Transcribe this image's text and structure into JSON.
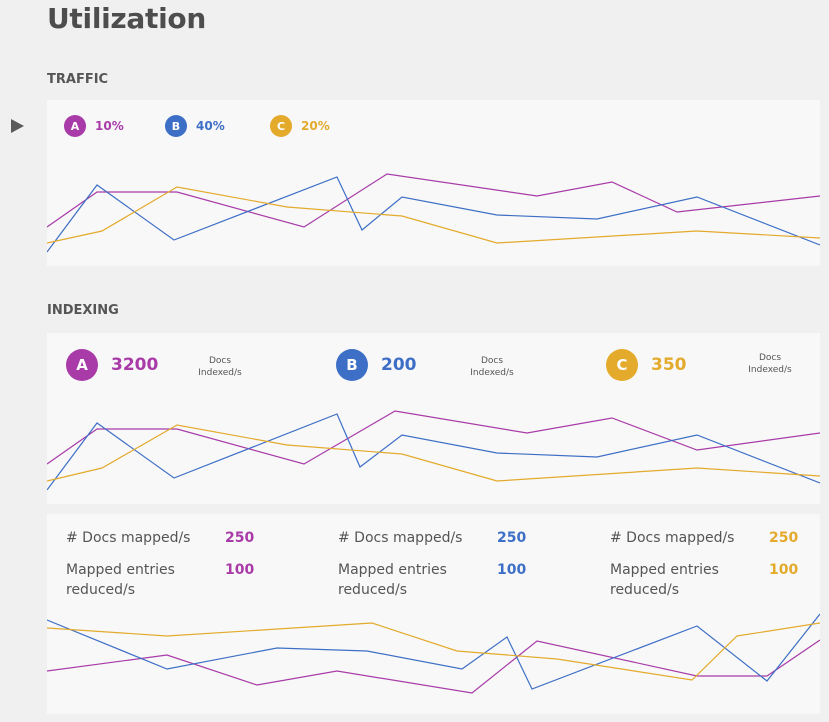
{
  "page": {
    "title": "Utilization"
  },
  "traffic": {
    "label": "TRAFFIC",
    "legend": [
      {
        "letter": "A",
        "value": "10%",
        "color": "#a83ba8"
      },
      {
        "letter": "B",
        "value": "40%",
        "color": "#3e6fc6"
      },
      {
        "letter": "C",
        "value": "20%",
        "color": "#e3aa2c"
      }
    ]
  },
  "indexing": {
    "label": "INDEXING",
    "items": [
      {
        "letter": "A",
        "value": "3200",
        "unit_line1": "Docs",
        "unit_line2": "Indexed/s",
        "color": "#a83ba8"
      },
      {
        "letter": "B",
        "value": "200",
        "unit_line1": "Docs",
        "unit_line2": "Indexed/s",
        "color": "#3e6fc6"
      },
      {
        "letter": "C",
        "value": "350",
        "unit_line1": "Docs",
        "unit_line2": "Indexed/s",
        "color": "#e3aa2c"
      }
    ],
    "mapreduce": [
      {
        "mapped_label": "# Docs mapped/s",
        "mapped_value": "250",
        "reduced_label": "Mapped entries reduced/s",
        "reduced_value": "100",
        "color": "#a83ba8"
      },
      {
        "mapped_label": "# Docs mapped/s",
        "mapped_value": "250",
        "reduced_label": "Mapped entries reduced/s",
        "reduced_value": "100",
        "color": "#3e6fc6"
      },
      {
        "mapped_label": "# Docs mapped/s",
        "mapped_value": "250",
        "reduced_label": "Mapped entries reduced/s",
        "reduced_value": "100",
        "color": "#e3aa2c"
      }
    ]
  }
}
